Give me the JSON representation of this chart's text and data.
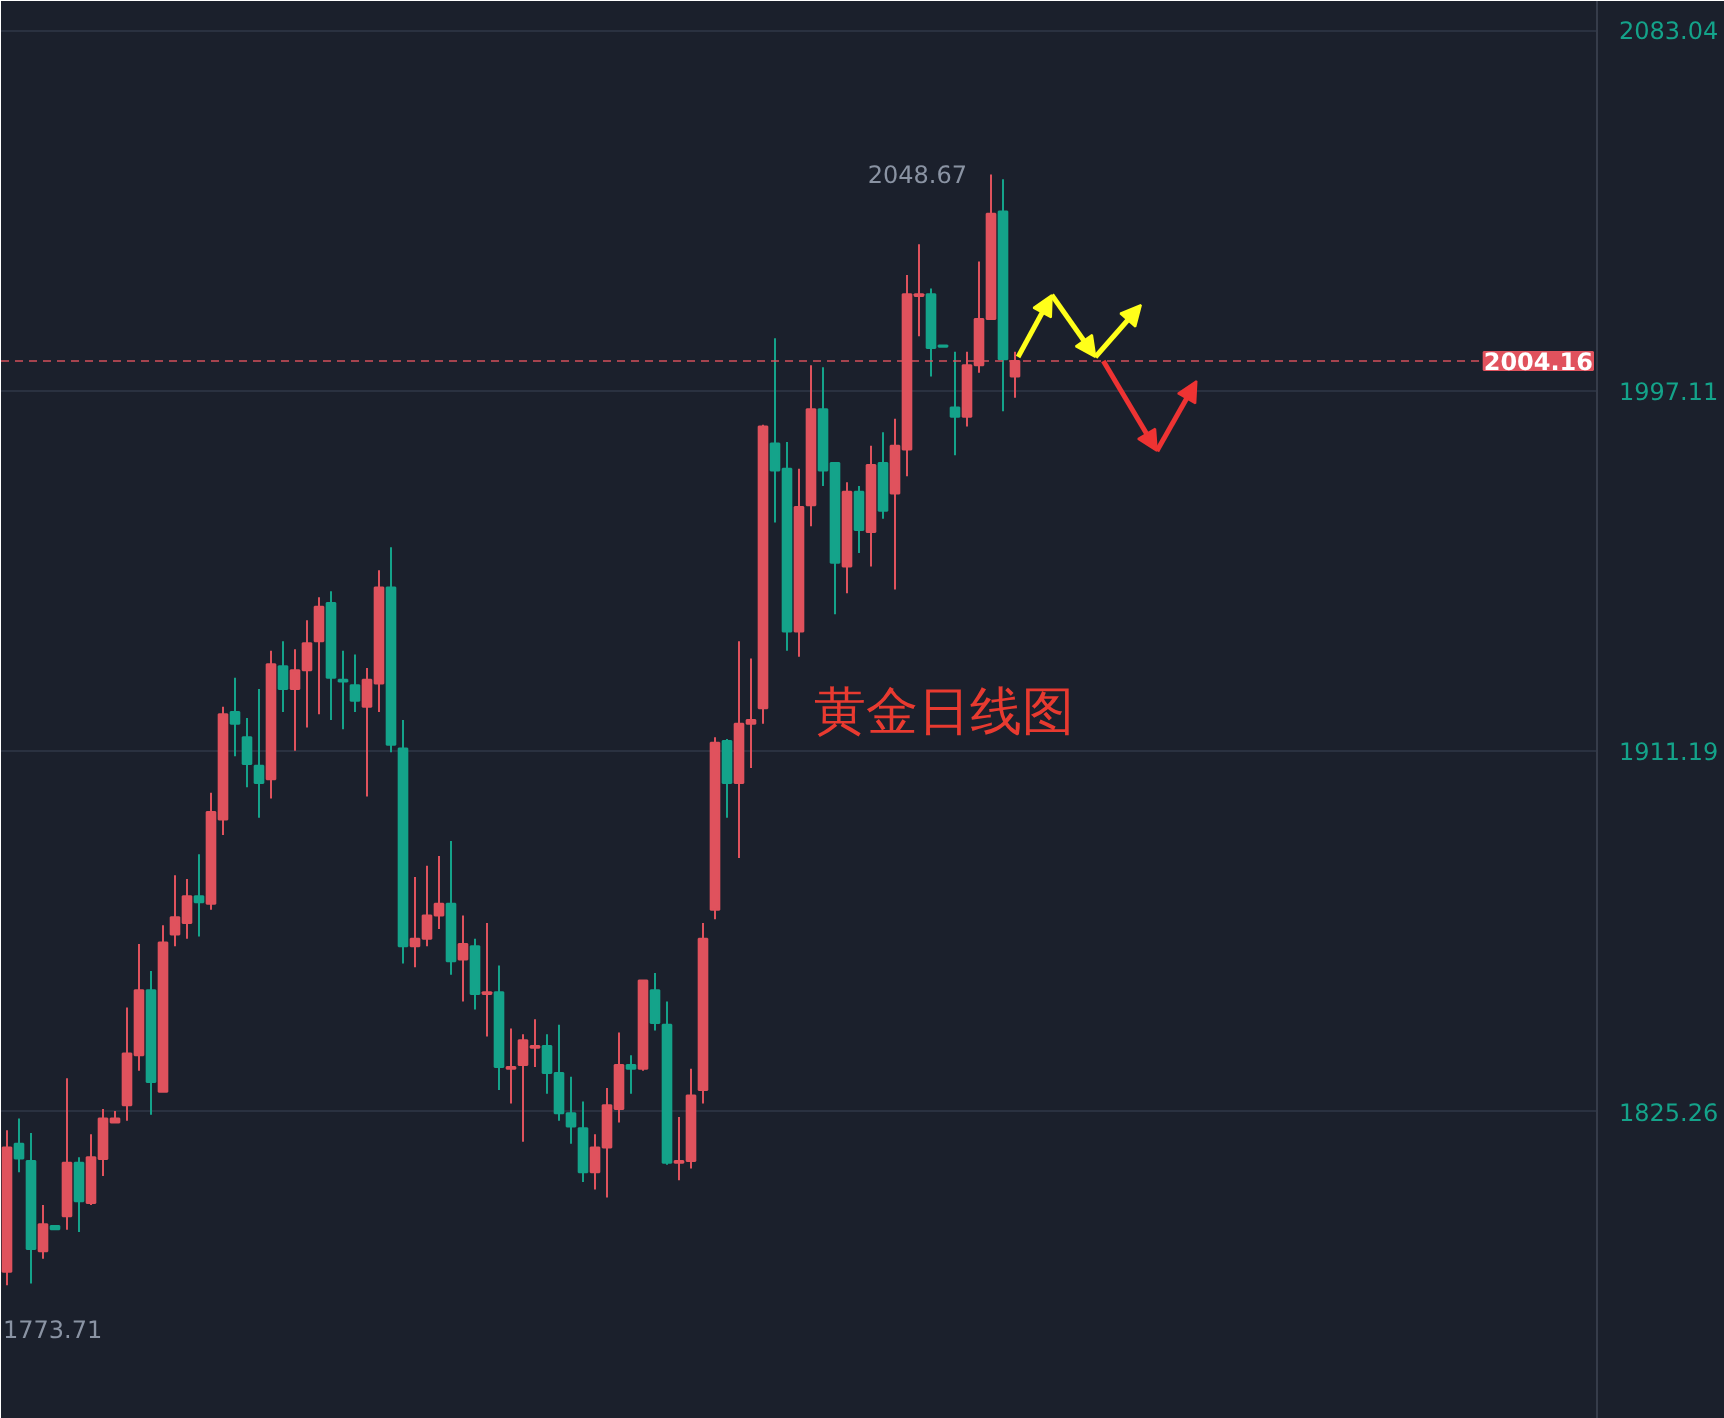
{
  "chart_data": {
    "type": "candlestick",
    "categories": [
      null,
      null,
      null,
      null,
      null,
      null,
      null,
      null,
      null,
      null,
      null,
      null,
      null,
      null,
      null,
      null,
      null,
      null,
      null,
      null,
      null,
      null,
      null,
      null,
      null,
      null,
      null,
      null,
      null,
      null,
      null,
      null,
      null,
      null,
      null,
      null,
      null,
      null,
      null,
      null,
      null,
      null,
      null,
      null,
      null,
      null,
      null,
      null,
      null,
      null,
      null,
      null,
      null,
      null,
      null,
      null,
      null,
      null,
      null,
      null,
      null,
      null,
      null,
      null,
      null,
      null,
      null,
      null,
      null,
      null,
      null,
      null,
      null,
      null,
      null,
      null,
      null,
      null,
      null,
      null,
      null,
      null,
      null,
      null,
      null,
      null,
      null,
      null,
      null,
      null,
      null,
      null,
      null,
      null,
      null,
      null,
      null,
      null,
      null,
      null,
      null,
      null,
      null,
      null,
      null,
      null,
      null,
      null,
      null,
      null,
      null,
      null,
      null,
      null,
      null,
      null,
      null,
      null,
      null,
      null,
      null,
      null,
      null,
      null,
      null,
      null,
      null,
      null,
      null,
      null,
      null,
      null,
      null
    ],
    "ohlc": [
      [
        1787.1,
        1820.8,
        1783.9,
        1816.7
      ],
      [
        1817.6,
        1823.6,
        1810.8,
        1814.1
      ],
      [
        1813.5,
        1820.2,
        1784.3,
        1792.5
      ],
      [
        1792.0,
        1803.0,
        1790.2,
        1798.4
      ],
      [
        1798.0,
        1798.0,
        1797.2,
        1797.2
      ],
      [
        1800.3,
        1833.2,
        1797.1,
        1813.1
      ],
      [
        1813.1,
        1814.4,
        1796.6,
        1803.9
      ],
      [
        1803.5,
        1819.9,
        1803.0,
        1814.4
      ],
      [
        1814.0,
        1825.9,
        1809.9,
        1823.6
      ],
      [
        1822.7,
        1825.4,
        1822.7,
        1823.6
      ],
      [
        1826.8,
        1850.1,
        1823.1,
        1839.1
      ],
      [
        1838.7,
        1865.2,
        1835.0,
        1854.2
      ],
      [
        1854.2,
        1858.8,
        1824.5,
        1832.3
      ],
      [
        1830.0,
        1869.7,
        1830.0,
        1865.6
      ],
      [
        1867.5,
        1881.6,
        1864.7,
        1871.6
      ],
      [
        1870.2,
        1880.7,
        1866.5,
        1876.6
      ],
      [
        1876.6,
        1886.6,
        1867.0,
        1875.2
      ],
      [
        1874.8,
        1901.3,
        1873.4,
        1896.7
      ],
      [
        1894.9,
        1921.8,
        1891.2,
        1920.0
      ],
      [
        1920.5,
        1928.7,
        1910.0,
        1917.7
      ],
      [
        1914.5,
        1919.1,
        1902.6,
        1908.1
      ],
      [
        1907.7,
        1926.0,
        1895.3,
        1903.6
      ],
      [
        1904.5,
        1935.1,
        1899.9,
        1931.9
      ],
      [
        1931.4,
        1937.4,
        1920.5,
        1926.0
      ],
      [
        1926.0,
        1935.5,
        1911.3,
        1930.5
      ],
      [
        1930.5,
        1942.4,
        1916.8,
        1936.9
      ],
      [
        1937.4,
        1947.9,
        1920.0,
        1945.6
      ],
      [
        1946.5,
        1949.3,
        1918.6,
        1928.7
      ],
      [
        1928.2,
        1935.1,
        1916.4,
        1927.8
      ],
      [
        1926.9,
        1934.2,
        1920.5,
        1923.2
      ],
      [
        1921.8,
        1931.0,
        1900.4,
        1928.2
      ],
      [
        1927.3,
        1954.3,
        1920.5,
        1950.2
      ],
      [
        1950.2,
        1959.8,
        1910.9,
        1912.7
      ],
      [
        1911.8,
        1918.6,
        1860.6,
        1864.7
      ],
      [
        1864.7,
        1881.2,
        1859.7,
        1866.5
      ],
      [
        1866.5,
        1883.9,
        1864.7,
        1872.0
      ],
      [
        1872.0,
        1886.2,
        1868.8,
        1874.8
      ],
      [
        1874.8,
        1889.8,
        1857.9,
        1861.1
      ],
      [
        1861.5,
        1872.0,
        1851.5,
        1865.2
      ],
      [
        1864.7,
        1866.5,
        1849.6,
        1853.3
      ],
      [
        1853.3,
        1870.2,
        1843.2,
        1853.7
      ],
      [
        1853.7,
        1860.1,
        1830.4,
        1835.9
      ],
      [
        1835.5,
        1845.1,
        1827.2,
        1835.9
      ],
      [
        1836.4,
        1843.7,
        1818.1,
        1842.3
      ],
      [
        1840.5,
        1847.3,
        1835.9,
        1840.9
      ],
      [
        1840.9,
        1843.7,
        1829.5,
        1834.5
      ],
      [
        1834.5,
        1846.0,
        1823.1,
        1824.9
      ],
      [
        1824.9,
        1833.6,
        1817.6,
        1821.7
      ],
      [
        1821.3,
        1827.7,
        1808.5,
        1810.8
      ],
      [
        1810.8,
        1819.9,
        1806.7,
        1816.7
      ],
      [
        1816.7,
        1830.9,
        1804.8,
        1826.8
      ],
      [
        1825.9,
        1844.1,
        1822.7,
        1836.4
      ],
      [
        1836.4,
        1838.7,
        1829.5,
        1835.5
      ],
      [
        1835.5,
        1856.5,
        1835.0,
        1856.5
      ],
      [
        1854.2,
        1858.3,
        1844.6,
        1846.4
      ],
      [
        1846.0,
        1851.5,
        1812.6,
        1813.1
      ],
      [
        1813.1,
        1824.0,
        1808.9,
        1813.5
      ],
      [
        1813.5,
        1835.5,
        1811.7,
        1829.1
      ],
      [
        1830.4,
        1870.2,
        1827.2,
        1866.5
      ],
      [
        1873.4,
        1914.5,
        1871.1,
        1913.2
      ],
      [
        1913.6,
        1914.1,
        1895.3,
        1903.6
      ],
      [
        1903.6,
        1937.4,
        1885.7,
        1917.7
      ],
      [
        1917.7,
        1933.3,
        1907.2,
        1918.6
      ],
      [
        1921.4,
        1989.0,
        1917.7,
        1988.6
      ],
      [
        1984.5,
        2009.6,
        1965.7,
        1978.1
      ],
      [
        1978.5,
        1984.9,
        1935.1,
        1939.7
      ],
      [
        1939.7,
        1978.5,
        1933.7,
        1969.4
      ],
      [
        1969.8,
        2003.2,
        1964.8,
        1992.7
      ],
      [
        1992.7,
        2002.7,
        1974.4,
        1978.1
      ],
      [
        1979.9,
        1979.9,
        1943.8,
        1956.1
      ],
      [
        1955.2,
        1975.3,
        1948.8,
        1973.0
      ],
      [
        1973.0,
        1974.4,
        1958.4,
        1963.9
      ],
      [
        1963.4,
        1984.0,
        1955.2,
        1979.4
      ],
      [
        1979.9,
        1987.2,
        1966.6,
        1968.5
      ],
      [
        1972.6,
        1990.4,
        1949.7,
        1984.0
      ],
      [
        1983.1,
        2024.7,
        1976.7,
        2020.1
      ],
      [
        2019.7,
        2032.0,
        2010.1,
        2020.1
      ],
      [
        2020.1,
        2021.5,
        2000.5,
        2007.3
      ],
      [
        2007.9,
        2007.9,
        2007.6,
        2007.6
      ],
      [
        1993.1,
        2006.4,
        1981.7,
        1990.9
      ],
      [
        1990.9,
        2006.4,
        1988.6,
        2003.2
      ],
      [
        2003.2,
        2027.9,
        2001.4,
        2014.2
      ],
      [
        2014.2,
        2048.67,
        2014.2,
        2039.3
      ],
      [
        2039.8,
        2047.5,
        1992.2,
        2004.6
      ],
      [
        2000.5,
        2006.4,
        1995.4,
        2004.16
      ],
      null,
      null,
      null,
      null,
      null,
      null,
      null,
      null,
      null,
      null,
      null,
      null,
      null,
      null,
      null,
      null,
      null,
      null,
      null,
      null,
      null,
      null,
      null,
      null,
      null,
      null,
      null,
      null,
      null,
      null,
      null,
      null,
      null,
      null,
      null,
      null,
      null,
      null,
      null,
      null,
      null,
      null,
      null,
      null,
      null,
      null,
      null,
      null
    ],
    "colors": [
      "#e0525d",
      "#14a38a",
      "#14a38a",
      "#e0525d",
      "#14a38a",
      "#e0525d",
      "#14a38a",
      "#e0525d",
      "#e0525d",
      "#e0525d",
      "#e0525d",
      "#e0525d",
      "#14a38a",
      "#e0525d",
      "#e0525d",
      "#e0525d",
      "#14a38a",
      "#e0525d",
      "#e0525d",
      "#14a38a",
      "#14a38a",
      "#14a38a",
      "#e0525d",
      "#14a38a",
      "#e0525d",
      "#e0525d",
      "#e0525d",
      "#14a38a",
      "#14a38a",
      "#14a38a",
      "#e0525d",
      "#e0525d",
      "#14a38a",
      "#14a38a",
      "#e0525d",
      "#e0525d",
      "#e0525d",
      "#14a38a",
      "#e0525d",
      "#14a38a",
      "#e0525d",
      "#14a38a",
      "#e0525d",
      "#e0525d",
      "#e0525d",
      "#14a38a",
      "#14a38a",
      "#14a38a",
      "#14a38a",
      "#e0525d",
      "#e0525d",
      "#e0525d",
      "#14a38a",
      "#e0525d",
      "#14a38a",
      "#14a38a",
      "#e0525d",
      "#e0525d",
      "#e0525d",
      "#e0525d",
      "#14a38a",
      "#e0525d",
      "#e0525d",
      "#e0525d",
      "#14a38a",
      "#14a38a",
      "#e0525d",
      "#e0525d",
      "#14a38a",
      "#14a38a",
      "#e0525d",
      "#14a38a",
      "#e0525d",
      "#14a38a",
      "#e0525d",
      "#e0525d",
      "#e0525d",
      "#14a38a",
      "#14a38a",
      "#14a38a",
      "#e0525d",
      "#e0525d",
      "#e0525d",
      "#14a38a",
      "#e0525d",
      null,
      null,
      null,
      null,
      null,
      null,
      null,
      null,
      null,
      null,
      null,
      null,
      null,
      null,
      null,
      null,
      null,
      null,
      null,
      null,
      null,
      null,
      null,
      null,
      null,
      null,
      null,
      null,
      null,
      null,
      null,
      null,
      null,
      null,
      null,
      null,
      null,
      null,
      null,
      null,
      null,
      null,
      null,
      null,
      null,
      null,
      null,
      null
    ],
    "ylim": [
      1752,
      2090
    ],
    "yticks": [
      1825.26,
      1911.19,
      1997.11,
      2083.04
    ],
    "grid": "y",
    "tick_labels": "y",
    "ref_lines": [
      {
        "axis": "y",
        "value": 2004.16,
        "label": "2004.16",
        "color": "#e0525d",
        "line_style": "dashed"
      }
    ],
    "annotations": [
      "2048.67",
      "1773.71",
      "黄金日线图"
    ]
  }
}
